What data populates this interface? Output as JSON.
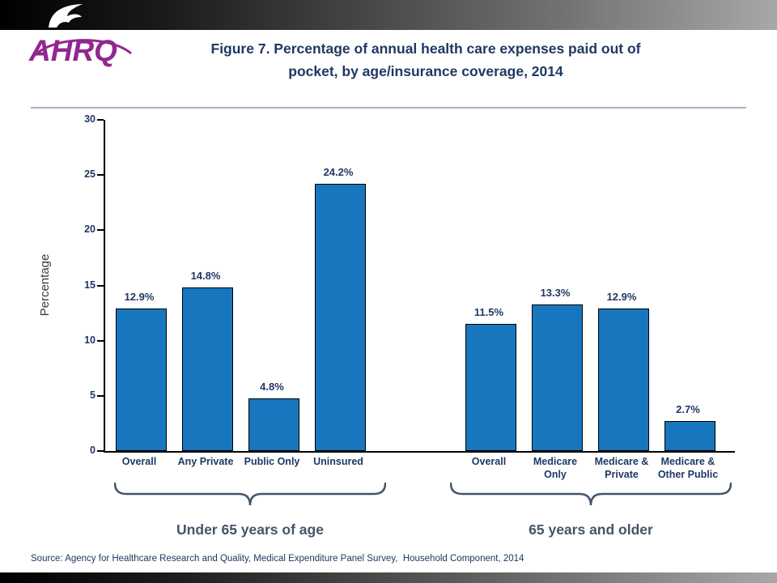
{
  "slide": {
    "title_line1": "Figure 7. Percentage of annual health care expenses paid out of",
    "title_line2": "pocket, by age/insurance coverage, 2014",
    "source": "Source: Agency for Healthcare Research and Quality, Medical Expenditure Panel Survey,  Household Component, 2014",
    "logo_text": "AHRQ"
  },
  "colors": {
    "bar_fill": "#1776BE",
    "title_navy": "#1F3864",
    "logo_purple": "#92278F",
    "group_label_gray": "#44546A"
  },
  "chart_data": {
    "type": "bar",
    "title": "Figure 7. Percentage of annual health care expenses paid out of pocket, by age/insurance coverage, 2014",
    "xlabel": "",
    "ylabel": "Percentage",
    "ylim": [
      0,
      30
    ],
    "yticks": [
      0,
      5,
      10,
      15,
      20,
      25,
      30
    ],
    "grid": false,
    "legend": "none",
    "bar_color": "#1776BE",
    "groups": [
      {
        "label": "Under 65 years of age",
        "categories": [
          "Overall",
          "Any Private",
          "Public Only",
          "Uninsured"
        ],
        "values": [
          12.9,
          14.8,
          4.8,
          24.2
        ],
        "value_labels": [
          "12.9%",
          "14.8%",
          "4.8%",
          "24.2%"
        ]
      },
      {
        "label": "65 years and older",
        "categories": [
          "Overall",
          "Medicare\nOnly",
          "Medicare &\nPrivate",
          "Medicare &\nOther Public"
        ],
        "values": [
          11.5,
          13.3,
          12.9,
          2.7
        ],
        "value_labels": [
          "11.5%",
          "13.3%",
          "12.9%",
          "2.7%"
        ]
      }
    ]
  }
}
